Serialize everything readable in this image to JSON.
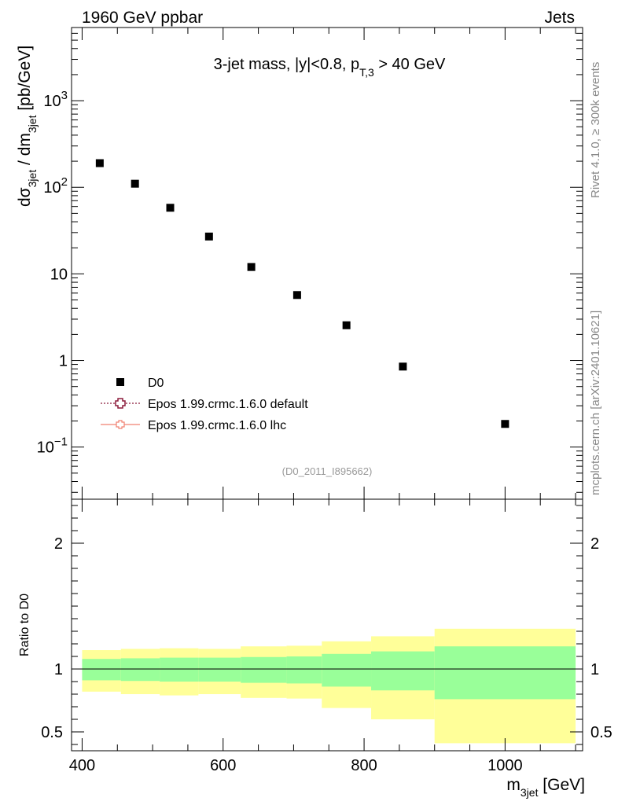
{
  "header": {
    "left": "1960 GeV ppbar",
    "right": "Jets"
  },
  "side": {
    "rivet": "Rivet 4.1.0, ≥ 300k events",
    "mcplots": "mcplots.cern.ch [arXiv:2401.10621]"
  },
  "chart_data": [
    {
      "type": "scatter",
      "panel": "main",
      "title": {
        "prefix": "3-jet mass, |y|<0.8, p",
        "sub": "T,3",
        "suffix": " > 40 GeV"
      },
      "ylabel": {
        "d_sigma": "dσ",
        "sub1": "3jet",
        "mid": " / dm",
        "sub2": "3jet",
        "unit": " [pb/GeV]"
      },
      "yscale": "log",
      "ylim": [
        0.025,
        7000
      ],
      "xlim": [
        385,
        1110
      ],
      "ytick_labels": [
        {
          "value": 1000,
          "base": "10",
          "exp": "3"
        },
        {
          "value": 100,
          "base": "10",
          "exp": "2"
        },
        {
          "value": 10,
          "base": "10",
          "exp": ""
        },
        {
          "value": 1,
          "base": "1",
          "exp": ""
        },
        {
          "value": 0.1,
          "base": "10",
          "exp": "−1"
        }
      ],
      "series": [
        {
          "name": "D0",
          "x": [
            425,
            475,
            525,
            580,
            640,
            705,
            775,
            855,
            1000
          ],
          "y": [
            190,
            110,
            58,
            27,
            12,
            5.7,
            2.55,
            0.85,
            0.185
          ]
        }
      ],
      "legend": {
        "position": "bottom-left",
        "entries": [
          {
            "label": "D0",
            "style": "marker",
            "color": "#000000"
          },
          {
            "label": "Epos 1.99.crmc.1.6.0 default",
            "style": "dotted-cross",
            "color": "#8b1a3a"
          },
          {
            "label": "Epos 1.99.crmc.1.6.0 lhc",
            "style": "solid-cross",
            "color": "#f08070"
          }
        ]
      },
      "watermark": "(D0_2011_I895662)"
    },
    {
      "type": "area",
      "panel": "ratio",
      "ylabel": "Ratio to D0",
      "xlabel": {
        "m": "m",
        "sub": "3jet",
        "unit": " [GeV]"
      },
      "xlim": [
        385,
        1110
      ],
      "ylim": [
        0.35,
        2.35
      ],
      "yticks": [
        0.5,
        1,
        2
      ],
      "ytick_labels": [
        "0.5",
        "1",
        "2"
      ],
      "xticks": [
        400,
        600,
        800,
        1000
      ],
      "xtick_labels": [
        "400",
        "600",
        "800",
        "1000"
      ],
      "reference_line": 1,
      "bins": {
        "edges": [
          400,
          455,
          510,
          565,
          625,
          690,
          740,
          810,
          900,
          1100
        ],
        "stat_low": [
          0.91,
          0.905,
          0.9,
          0.9,
          0.89,
          0.885,
          0.86,
          0.83,
          0.76
        ],
        "stat_high": [
          1.08,
          1.085,
          1.09,
          1.09,
          1.095,
          1.1,
          1.12,
          1.14,
          1.18
        ],
        "total_low": [
          0.82,
          0.8,
          0.79,
          0.8,
          0.77,
          0.765,
          0.69,
          0.6,
          0.41
        ],
        "total_high": [
          1.15,
          1.16,
          1.165,
          1.16,
          1.18,
          1.185,
          1.22,
          1.26,
          1.32
        ]
      },
      "colors": {
        "stat": "#99ff99",
        "total": "#ffff99"
      }
    }
  ]
}
